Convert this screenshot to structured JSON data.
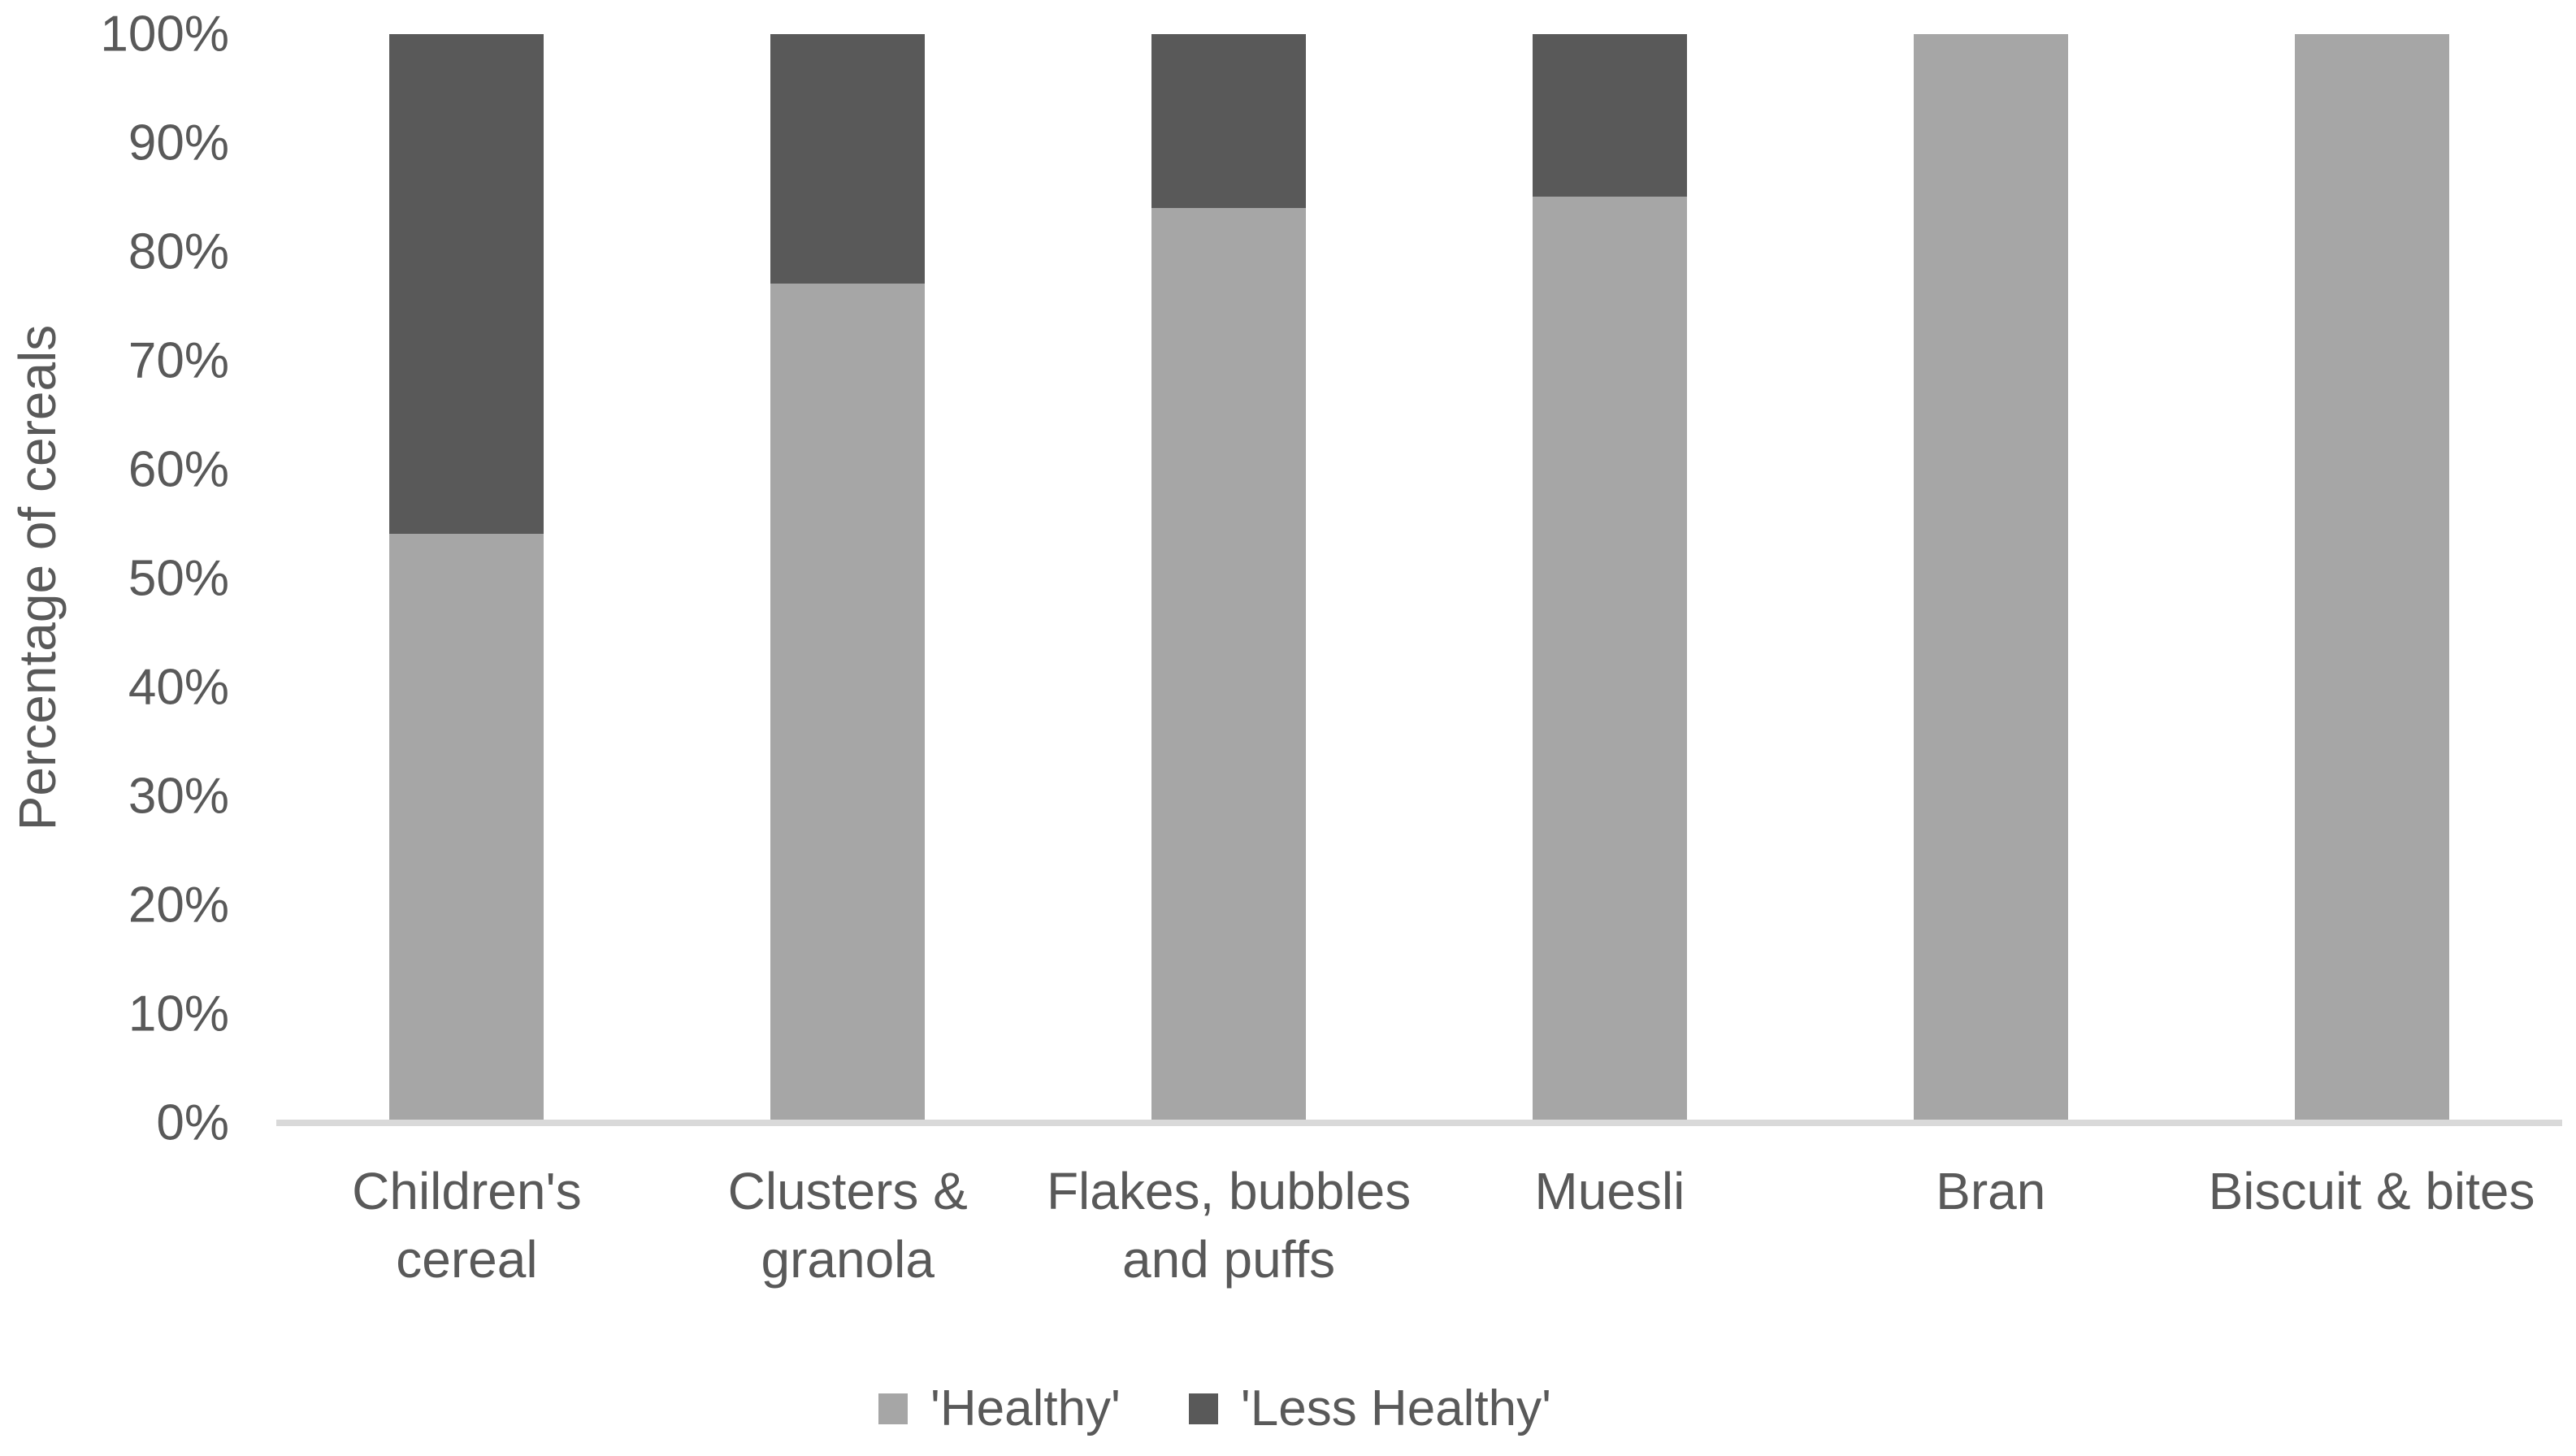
{
  "chart_data": {
    "type": "bar",
    "stacked": true,
    "title": "",
    "xlabel": "",
    "ylabel": "Percentage of cereals",
    "categories": [
      "Children's\ncereal",
      "Clusters &\ngranola",
      "Flakes, bubbles\nand puffs",
      "Muesli",
      "Bran",
      "Biscuit & bites"
    ],
    "series": [
      {
        "name": "'Healthy'",
        "color": "#a6a6a6",
        "values": [
          54,
          77,
          84,
          85,
          100,
          100
        ]
      },
      {
        "name": "'Less Healthy'",
        "color": "#595959",
        "values": [
          46,
          23,
          16,
          15,
          0,
          0
        ]
      }
    ],
    "ylim": [
      0,
      100
    ],
    "y_ticks": [
      {
        "value": 0,
        "label": "0%"
      },
      {
        "value": 10,
        "label": "10%"
      },
      {
        "value": 20,
        "label": "20%"
      },
      {
        "value": 30,
        "label": "30%"
      },
      {
        "value": 40,
        "label": "40%"
      },
      {
        "value": 50,
        "label": "50%"
      },
      {
        "value": 60,
        "label": "60%"
      },
      {
        "value": 70,
        "label": "70%"
      },
      {
        "value": 80,
        "label": "80%"
      },
      {
        "value": 90,
        "label": "90%"
      },
      {
        "value": 100,
        "label": "100%"
      }
    ],
    "grid": false,
    "legend_position": "bottom",
    "axis_line_color": "#d9d9d9",
    "text_color": "#595959",
    "background_color": "#ffffff"
  }
}
